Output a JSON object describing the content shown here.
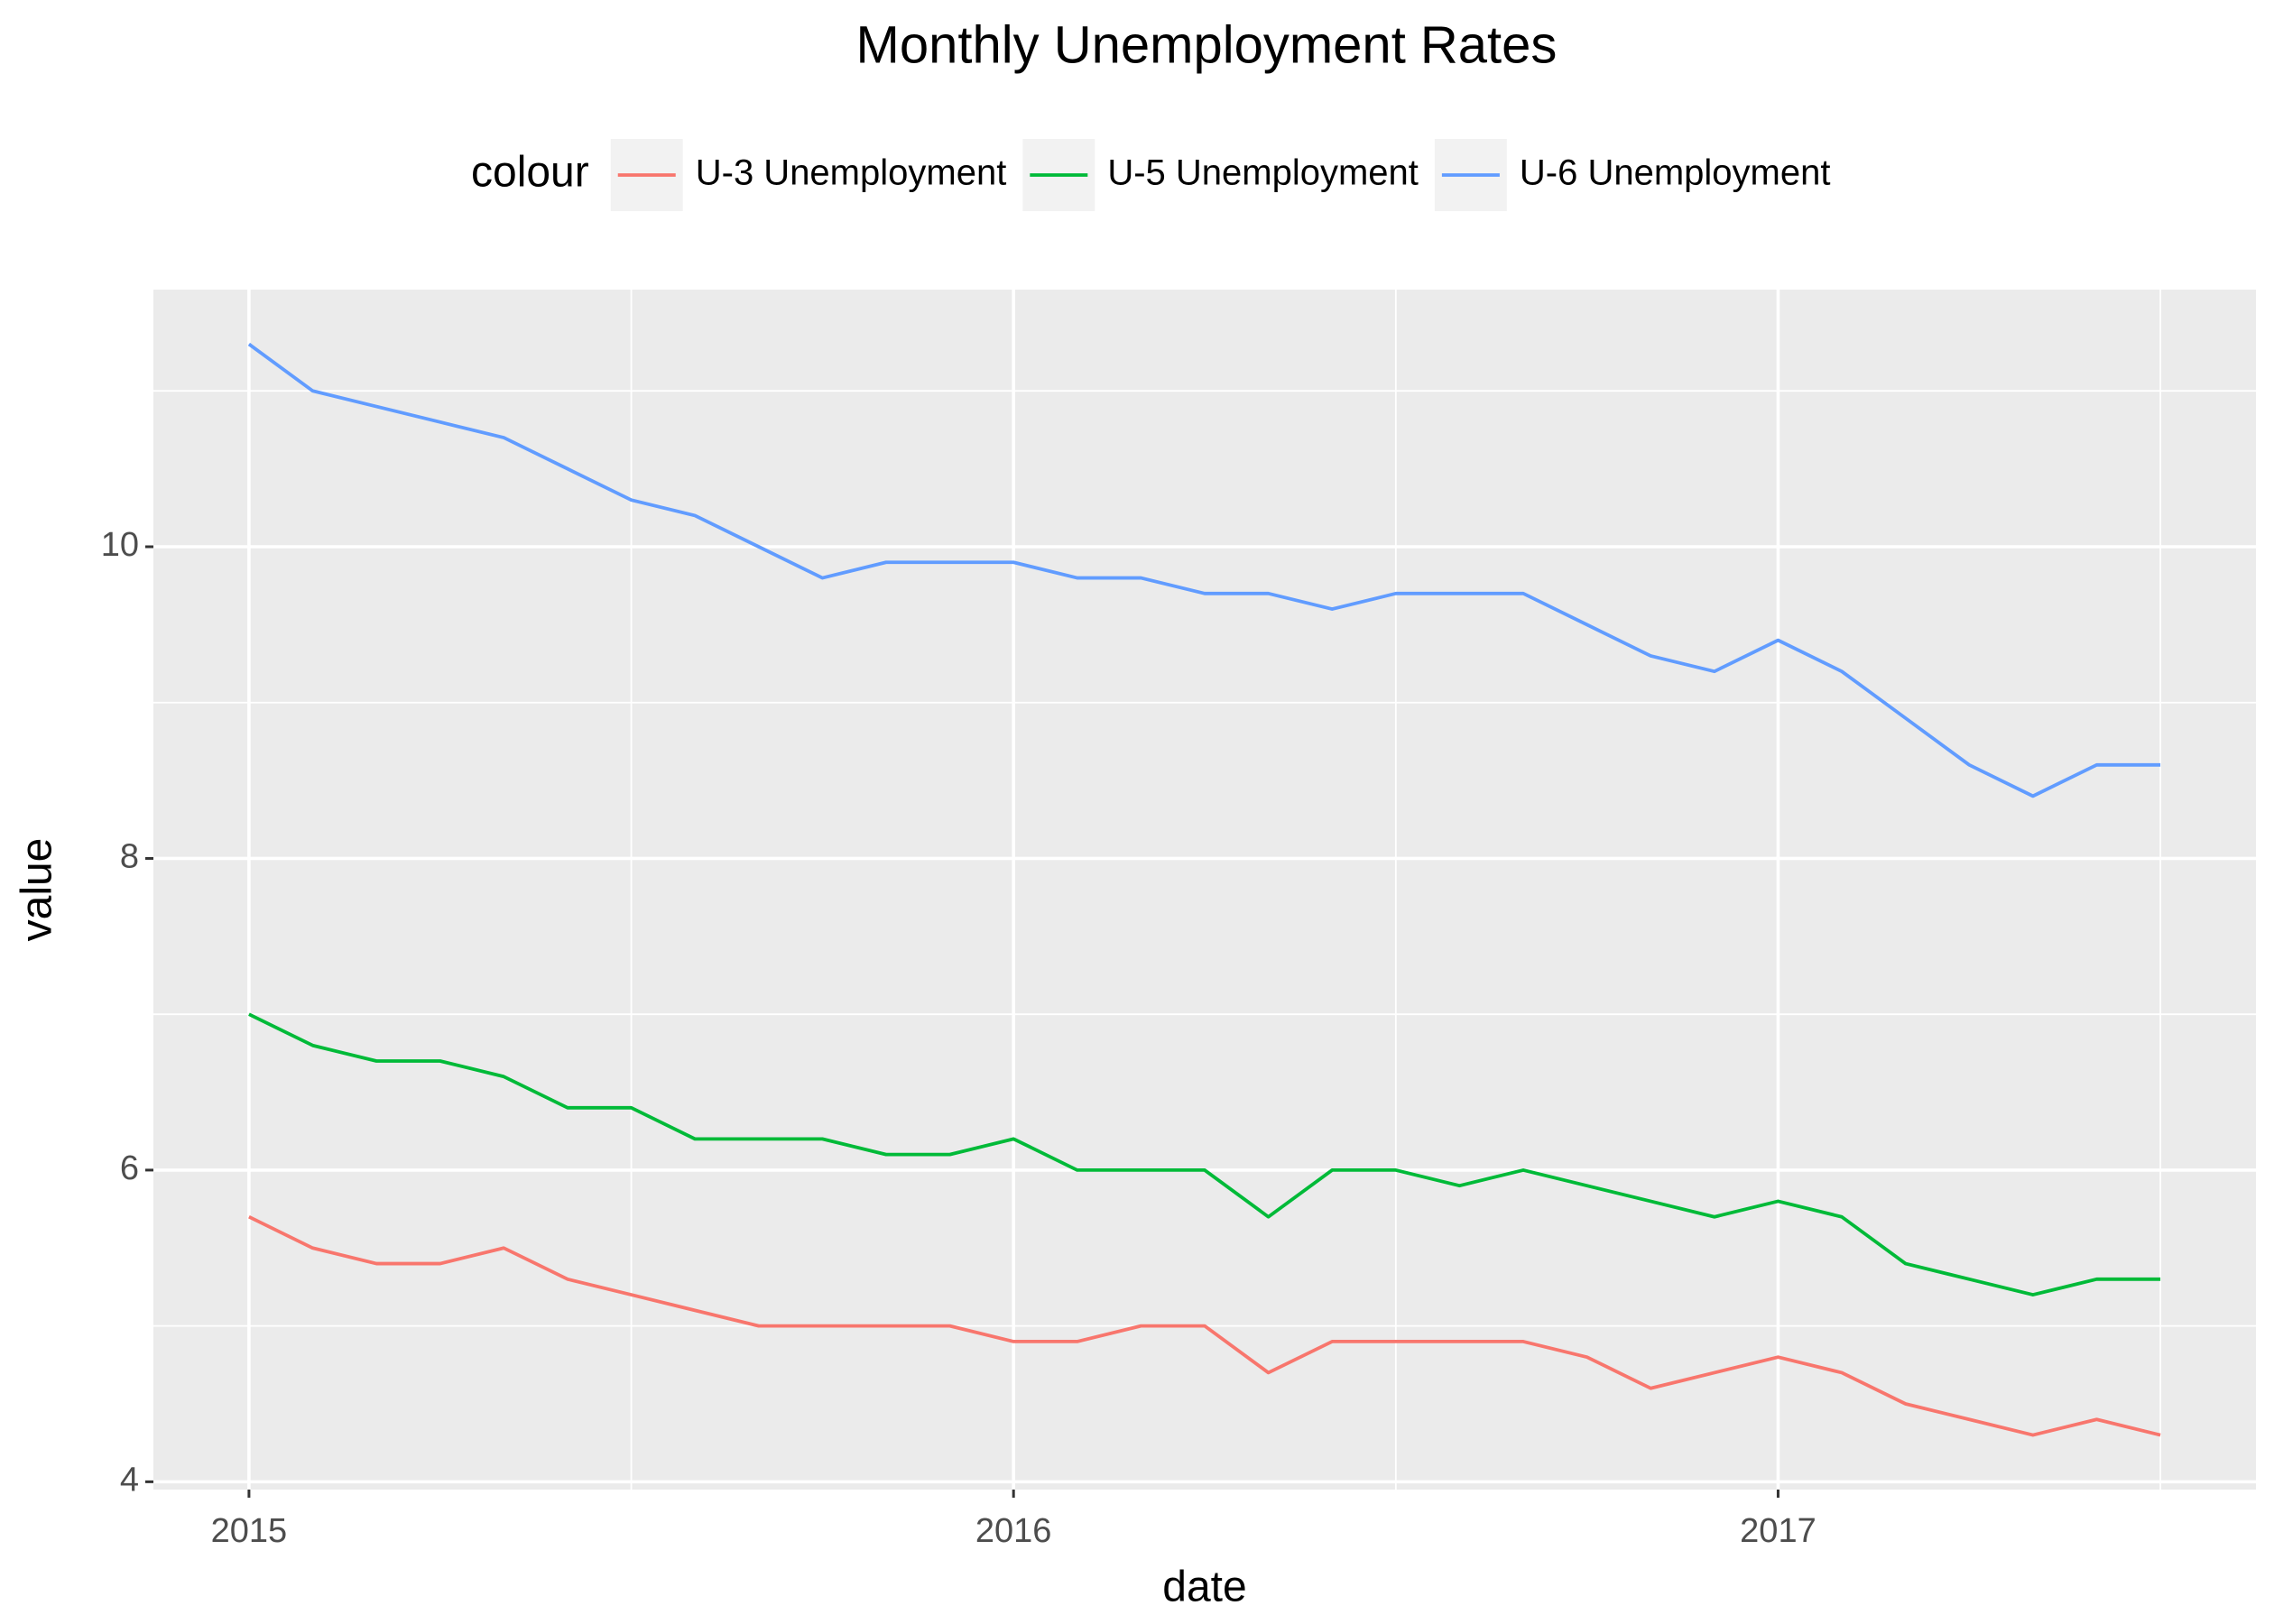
{
  "chart_data": {
    "type": "line",
    "title": "Monthly Unemployment Rates",
    "x_label": "date",
    "y_label": "value",
    "legend_title": "colour",
    "legend_position": "top",
    "grid": true,
    "x": [
      2015,
      2015.0833,
      2015.1667,
      2015.25,
      2015.3333,
      2015.4167,
      2015.5,
      2015.5833,
      2015.6667,
      2015.75,
      2015.8333,
      2015.9167,
      2016,
      2016.0833,
      2016.1667,
      2016.25,
      2016.3333,
      2016.4167,
      2016.5,
      2016.5833,
      2016.6667,
      2016.75,
      2016.8333,
      2016.9167,
      2017,
      2017.0833,
      2017.1667,
      2017.25,
      2017.3333,
      2017.4167,
      2017.5
    ],
    "xlim": [
      2014.875,
      2017.625
    ],
    "xticks": [
      2015,
      2016,
      2017
    ],
    "ylim": [
      3.95,
      11.65
    ],
    "yticks": [
      4,
      6,
      8,
      10
    ],
    "series": [
      {
        "name": "U-3 Unemployment",
        "color": "#F8766D",
        "values": [
          5.7,
          5.5,
          5.4,
          5.4,
          5.5,
          5.3,
          5.2,
          5.1,
          5.0,
          5.0,
          5.0,
          5.0,
          4.9,
          4.9,
          5.0,
          5.0,
          4.7,
          4.9,
          4.9,
          4.9,
          4.9,
          4.8,
          4.6,
          4.7,
          4.8,
          4.7,
          4.5,
          4.4,
          4.3,
          4.4,
          4.3
        ]
      },
      {
        "name": "U-5 Unemployment",
        "color": "#00BA38",
        "values": [
          7.0,
          6.8,
          6.7,
          6.7,
          6.6,
          6.4,
          6.4,
          6.2,
          6.2,
          6.2,
          6.1,
          6.1,
          6.2,
          6.0,
          6.0,
          6.0,
          5.7,
          6.0,
          6.0,
          5.9,
          6.0,
          5.9,
          5.8,
          5.7,
          5.8,
          5.7,
          5.4,
          5.3,
          5.2,
          5.3,
          5.3
        ]
      },
      {
        "name": "U-6 Unemployment",
        "color": "#619CFF",
        "values": [
          11.3,
          11.0,
          10.9,
          10.8,
          10.7,
          10.5,
          10.3,
          10.2,
          10.0,
          9.8,
          9.9,
          9.9,
          9.9,
          9.8,
          9.8,
          9.7,
          9.7,
          9.6,
          9.7,
          9.7,
          9.7,
          9.5,
          9.3,
          9.2,
          9.4,
          9.2,
          8.9,
          8.6,
          8.4,
          8.6,
          8.6
        ]
      }
    ]
  }
}
